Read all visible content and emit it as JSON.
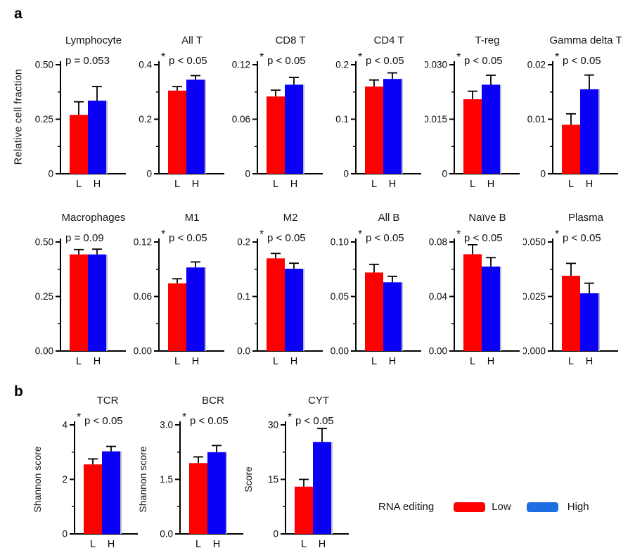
{
  "figure": {
    "panel_a_label": "a",
    "panel_b_label": "b",
    "row1_ylabel": "Relative cell fraction",
    "categories": [
      "L",
      "H"
    ],
    "colors": {
      "low": "#fe0000",
      "high": "#0a00f5",
      "legend_high": "#1d6ee3",
      "axis": "#000000",
      "background": "#ffffff"
    },
    "legend": {
      "title": "RNA editing",
      "items": [
        {
          "label": "Low",
          "color": "#fe0000"
        },
        {
          "label": "High",
          "color": "#1d6ee3"
        }
      ]
    }
  },
  "chart_data": [
    {
      "type": "bar",
      "row": 1,
      "title": "Lymphocyte",
      "p_label": "p = 0.053",
      "ylabel": "",
      "ylim": [
        0,
        0.5
      ],
      "yticks": [
        {
          "v": 0,
          "label": "0"
        },
        {
          "v": 0.25,
          "label": "0.25"
        },
        {
          "v": 0.5,
          "label": "0.50"
        }
      ],
      "categories": [
        "L",
        "H"
      ],
      "values": [
        0.27,
        0.335
      ],
      "errors": [
        0.06,
        0.065
      ]
    },
    {
      "type": "bar",
      "row": 1,
      "title": "All T",
      "p_label": "* p < 0.05",
      "ylabel": "",
      "ylim": [
        0,
        0.4
      ],
      "yticks": [
        {
          "v": 0,
          "label": "0"
        },
        {
          "v": 0.2,
          "label": "0.2"
        },
        {
          "v": 0.4,
          "label": "0.4"
        }
      ],
      "categories": [
        "L",
        "H"
      ],
      "values": [
        0.305,
        0.345
      ],
      "errors": [
        0.015,
        0.015
      ]
    },
    {
      "type": "bar",
      "row": 1,
      "title": "CD8 T",
      "p_label": "* p < 0.05",
      "ylabel": "",
      "ylim": [
        0,
        0.12
      ],
      "yticks": [
        {
          "v": 0,
          "label": "0"
        },
        {
          "v": 0.06,
          "label": "0.06"
        },
        {
          "v": 0.12,
          "label": "0.12"
        }
      ],
      "categories": [
        "L",
        "H"
      ],
      "values": [
        0.085,
        0.098
      ],
      "errors": [
        0.007,
        0.008
      ]
    },
    {
      "type": "bar",
      "row": 1,
      "title": "CD4 T",
      "p_label": "* p < 0.05",
      "ylabel": "",
      "ylim": [
        0,
        0.2
      ],
      "yticks": [
        {
          "v": 0,
          "label": "0"
        },
        {
          "v": 0.1,
          "label": "0.1"
        },
        {
          "v": 0.2,
          "label": "0.2"
        }
      ],
      "categories": [
        "L",
        "H"
      ],
      "values": [
        0.16,
        0.174
      ],
      "errors": [
        0.012,
        0.011
      ]
    },
    {
      "type": "bar",
      "row": 1,
      "title": "T-reg",
      "p_label": "* p < 0.05",
      "ylabel": "",
      "ylim": [
        0,
        0.03
      ],
      "yticks": [
        {
          "v": 0,
          "label": "0"
        },
        {
          "v": 0.015,
          "label": "0.015"
        },
        {
          "v": 0.03,
          "label": "0.030"
        }
      ],
      "categories": [
        "L",
        "H"
      ],
      "values": [
        0.0205,
        0.0245
      ],
      "errors": [
        0.0022,
        0.0026
      ]
    },
    {
      "type": "bar",
      "row": 1,
      "title": "Gamma delta T",
      "p_label": "* p < 0.05",
      "ylabel": "",
      "ylim": [
        0,
        0.02
      ],
      "yticks": [
        {
          "v": 0,
          "label": "0"
        },
        {
          "v": 0.01,
          "label": "0.01"
        },
        {
          "v": 0.02,
          "label": "0.02"
        }
      ],
      "categories": [
        "L",
        "H"
      ],
      "values": [
        0.009,
        0.0155
      ],
      "errors": [
        0.002,
        0.0026
      ]
    },
    {
      "type": "bar",
      "row": 2,
      "title": "Macrophages",
      "p_label": "p = 0.09",
      "ylabel": "",
      "ylim": [
        0,
        0.5
      ],
      "yticks": [
        {
          "v": 0,
          "label": "0.00"
        },
        {
          "v": 0.25,
          "label": "0.25"
        },
        {
          "v": 0.5,
          "label": "0.50"
        }
      ],
      "categories": [
        "L",
        "H"
      ],
      "values": [
        0.443,
        0.443
      ],
      "errors": [
        0.022,
        0.024
      ]
    },
    {
      "type": "bar",
      "row": 2,
      "title": "M1",
      "p_label": "* p < 0.05",
      "ylabel": "",
      "ylim": [
        0,
        0.12
      ],
      "yticks": [
        {
          "v": 0,
          "label": "0.00"
        },
        {
          "v": 0.06,
          "label": "0.06"
        },
        {
          "v": 0.12,
          "label": "0.12"
        }
      ],
      "categories": [
        "L",
        "H"
      ],
      "values": [
        0.0745,
        0.092
      ],
      "errors": [
        0.005,
        0.006
      ]
    },
    {
      "type": "bar",
      "row": 2,
      "title": "M2",
      "p_label": "* p < 0.05",
      "ylabel": "",
      "ylim": [
        0,
        0.2
      ],
      "yticks": [
        {
          "v": 0,
          "label": "0.0"
        },
        {
          "v": 0.1,
          "label": "0.1"
        },
        {
          "v": 0.2,
          "label": "0.2"
        }
      ],
      "categories": [
        "L",
        "H"
      ],
      "values": [
        0.17,
        0.151
      ],
      "errors": [
        0.009,
        0.01
      ]
    },
    {
      "type": "bar",
      "row": 2,
      "title": "All B",
      "p_label": "* p < 0.05",
      "ylabel": "",
      "ylim": [
        0,
        0.1
      ],
      "yticks": [
        {
          "v": 0,
          "label": "0.00"
        },
        {
          "v": 0.05,
          "label": "0.05"
        },
        {
          "v": 0.1,
          "label": "0.10"
        }
      ],
      "categories": [
        "L",
        "H"
      ],
      "values": [
        0.072,
        0.063
      ],
      "errors": [
        0.0075,
        0.0055
      ]
    },
    {
      "type": "bar",
      "row": 2,
      "title": "Naïve B",
      "p_label": "* p < 0.05",
      "ylabel": "",
      "ylim": [
        0,
        0.08
      ],
      "yticks": [
        {
          "v": 0,
          "label": "0.00"
        },
        {
          "v": 0.04,
          "label": "0.04"
        },
        {
          "v": 0.08,
          "label": "0.08"
        }
      ],
      "categories": [
        "L",
        "H"
      ],
      "values": [
        0.071,
        0.062
      ],
      "errors": [
        0.007,
        0.0065
      ]
    },
    {
      "type": "bar",
      "row": 2,
      "title": "Plasma",
      "p_label": "* p < 0.05",
      "ylabel": "",
      "ylim": [
        0,
        0.05
      ],
      "yticks": [
        {
          "v": 0,
          "label": "0.000"
        },
        {
          "v": 0.025,
          "label": "0.025"
        },
        {
          "v": 0.05,
          "label": "0.050"
        }
      ],
      "categories": [
        "L",
        "H"
      ],
      "values": [
        0.0345,
        0.0265
      ],
      "errors": [
        0.0057,
        0.0046
      ]
    },
    {
      "type": "bar",
      "row": 3,
      "title": "TCR",
      "p_label": "* p < 0.05",
      "ylabel": "Shannon score",
      "ylim": [
        0,
        4
      ],
      "yticks": [
        {
          "v": 0,
          "label": "0"
        },
        {
          "v": 2,
          "label": "2"
        },
        {
          "v": 4,
          "label": "4"
        }
      ],
      "categories": [
        "L",
        "H"
      ],
      "values": [
        2.55,
        3.03
      ],
      "errors": [
        0.2,
        0.18
      ]
    },
    {
      "type": "bar",
      "row": 3,
      "title": "BCR",
      "p_label": "* p < 0.05",
      "ylabel": "Shannon score",
      "ylim": [
        0,
        3
      ],
      "yticks": [
        {
          "v": 0,
          "label": "0.0"
        },
        {
          "v": 1.5,
          "label": "1.5"
        },
        {
          "v": 3,
          "label": "3.0"
        }
      ],
      "categories": [
        "L",
        "H"
      ],
      "values": [
        1.95,
        2.25
      ],
      "errors": [
        0.17,
        0.18
      ]
    },
    {
      "type": "bar",
      "row": 3,
      "title": "CYT",
      "p_label": "* p < 0.05",
      "ylabel": "Score",
      "ylim": [
        0,
        30
      ],
      "yticks": [
        {
          "v": 0,
          "label": "0"
        },
        {
          "v": 15,
          "label": "15"
        },
        {
          "v": 30,
          "label": "30"
        }
      ],
      "categories": [
        "L",
        "H"
      ],
      "values": [
        13,
        25.3
      ],
      "errors": [
        2,
        3.7
      ]
    }
  ]
}
